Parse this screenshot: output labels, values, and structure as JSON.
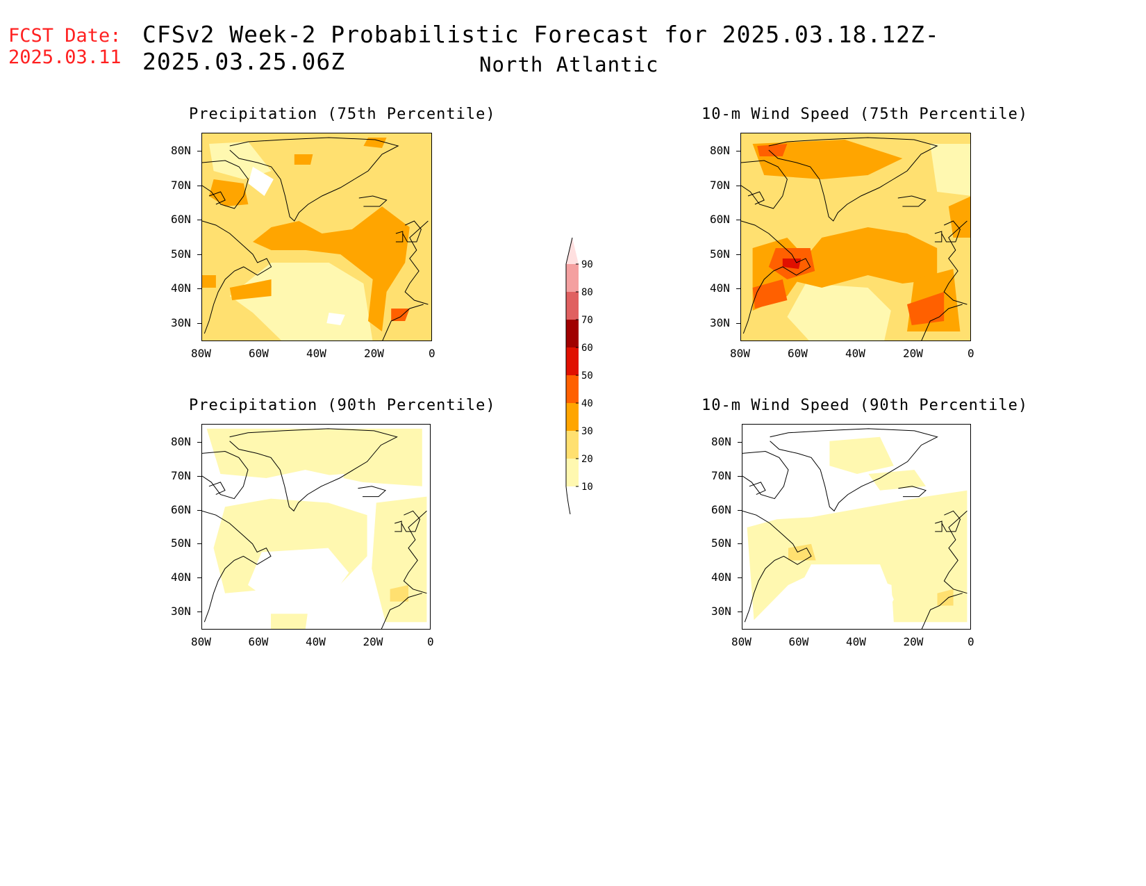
{
  "header": {
    "fcst_label": "FCST Date:",
    "fcst_date": "2025.03.11",
    "title": "CFSv2 Week-2 Probabilistic Forecast for 2025.03.18.12Z-2025.03.25.06Z",
    "subtitle": "North Atlantic"
  },
  "axes": {
    "lat_ticks": [
      "80N",
      "70N",
      "60N",
      "50N",
      "40N",
      "30N"
    ],
    "lon_ticks": [
      "80W",
      "60W",
      "40W",
      "20W",
      "0"
    ]
  },
  "panels": [
    {
      "id": "precip75",
      "title": "Precipitation (75th Percentile)"
    },
    {
      "id": "wind75",
      "title": "10-m Wind Speed (75th Percentile)"
    },
    {
      "id": "precip90",
      "title": "Precipitation (90th Percentile)"
    },
    {
      "id": "wind90",
      "title": "10-m Wind Speed (90th Percentile)"
    }
  ],
  "colorbar": {
    "levels": [
      "10",
      "20",
      "30",
      "40",
      "50",
      "60",
      "70",
      "80",
      "90"
    ],
    "colors": [
      "#fff8b0",
      "#ffe070",
      "#ffa500",
      "#ff6000",
      "#e01000",
      "#a00000",
      "#e06060",
      "#f4a0a0",
      "#ffe0e0"
    ]
  },
  "map_colors": {
    "white": "#ffffff",
    "light": "#fff8b0",
    "yellow": "#ffe070",
    "orange": "#ffa500",
    "dark_orange": "#ff6000",
    "red": "#e01000"
  }
}
